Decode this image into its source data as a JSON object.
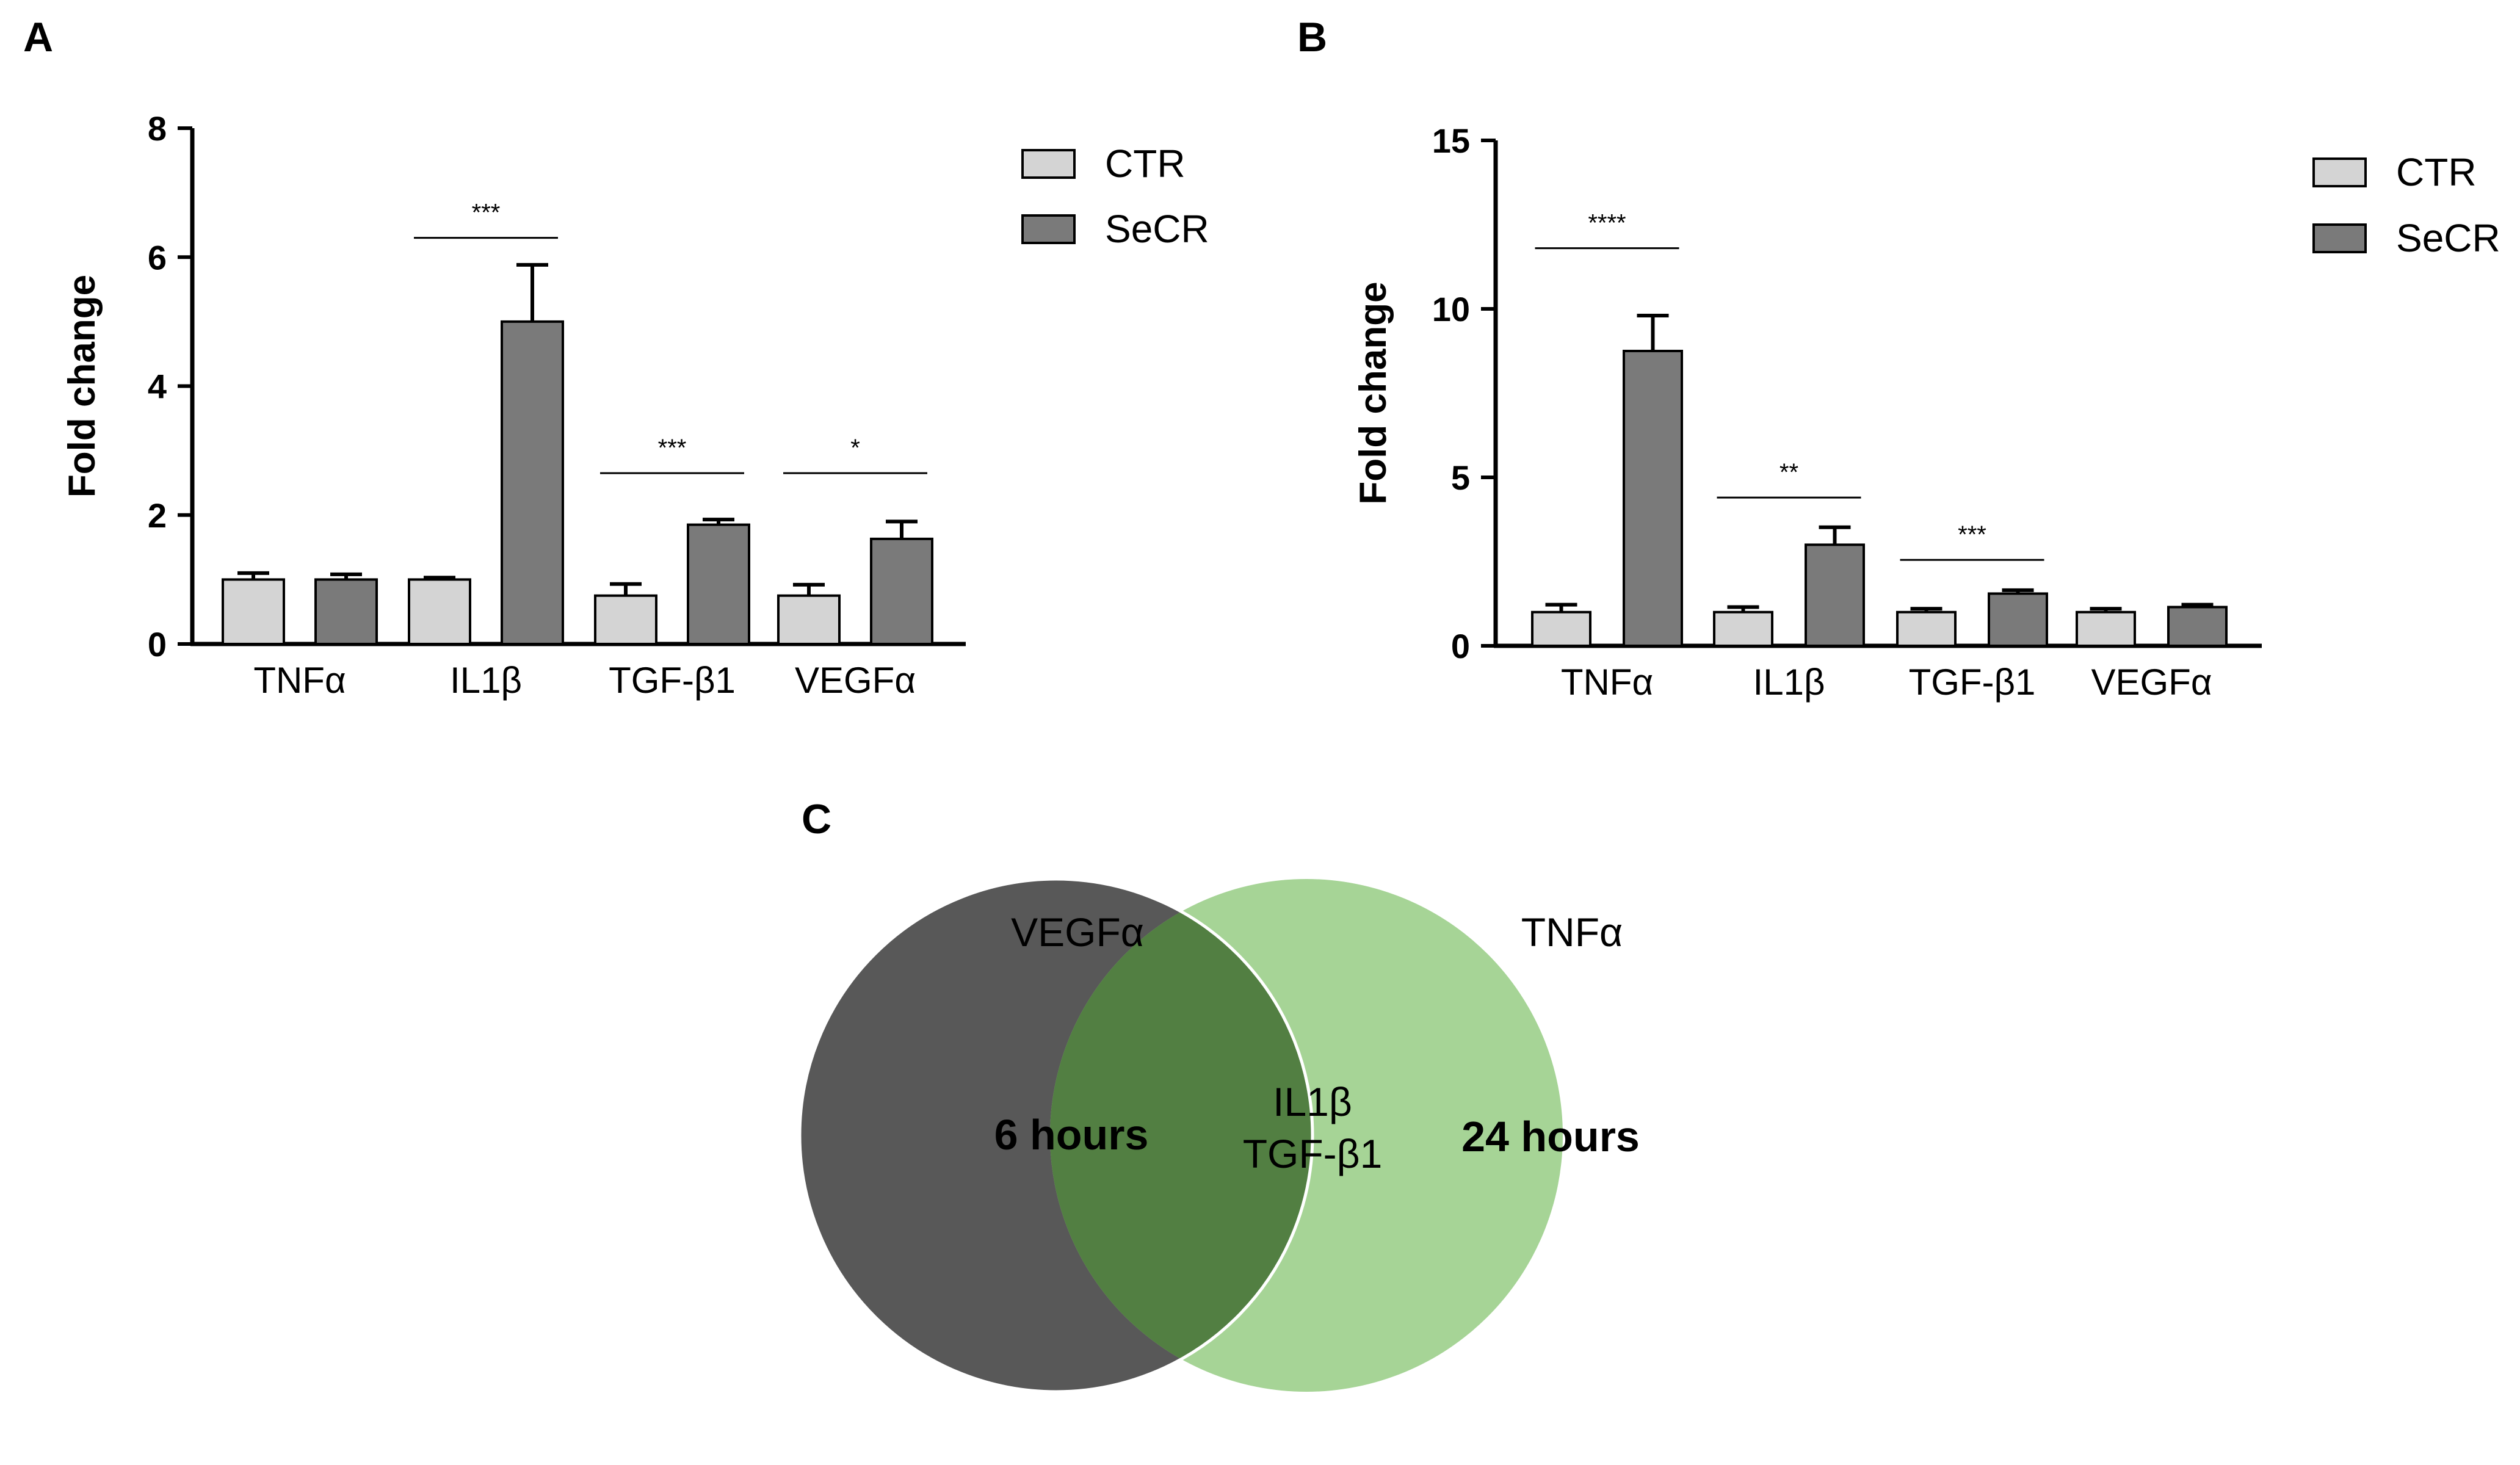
{
  "chart_data": [
    {
      "panel_label": "A",
      "type": "bar",
      "categories": [
        "TNFα",
        "IL1β",
        "TGF-β1",
        "VEGFα"
      ],
      "series": [
        {
          "name": "CTR",
          "values": [
            1.0,
            1.0,
            0.75,
            0.75
          ],
          "errors": [
            0.1,
            0.03,
            0.18,
            0.17
          ],
          "color": "#d4d4d4"
        },
        {
          "name": "SeCR",
          "values": [
            1.0,
            5.0,
            1.85,
            1.63
          ],
          "errors": [
            0.08,
            0.88,
            0.08,
            0.27
          ],
          "color": "#7a7a7a"
        }
      ],
      "significance": [
        {
          "category": "IL1β",
          "label": "***",
          "y": 6.3
        },
        {
          "category": "TGF-β1",
          "label": "***",
          "y": 2.65
        },
        {
          "category": "VEGFα",
          "label": "*",
          "y": 2.65
        }
      ],
      "title": "",
      "xlabel": "",
      "ylabel": "Fold change",
      "ylim": [
        0,
        8
      ],
      "yticks": [
        "0",
        "2",
        "4",
        "6",
        "8"
      ],
      "legend": "top-right"
    },
    {
      "panel_label": "B",
      "type": "bar",
      "categories": [
        "TNFα",
        "IL1β",
        "TGF-β1",
        "VEGFα"
      ],
      "series": [
        {
          "name": "CTR",
          "values": [
            1.0,
            1.0,
            1.0,
            1.0
          ],
          "errors": [
            0.22,
            0.15,
            0.1,
            0.1
          ],
          "color": "#d4d4d4"
        },
        {
          "name": "SeCR",
          "values": [
            8.75,
            3.0,
            1.55,
            1.15
          ],
          "errors": [
            1.05,
            0.52,
            0.1,
            0.07
          ],
          "color": "#7a7a7a"
        }
      ],
      "significance": [
        {
          "category": "TNFα",
          "label": "****",
          "y": 11.8
        },
        {
          "category": "IL1β",
          "label": "**",
          "y": 4.4
        },
        {
          "category": "TGF-β1",
          "label": "***",
          "y": 2.55
        }
      ],
      "title": "",
      "xlabel": "",
      "ylabel": "Fold change",
      "ylim": [
        0,
        15
      ],
      "yticks": [
        "0",
        "5",
        "10",
        "15"
      ],
      "legend": "top-right"
    }
  ],
  "venn": {
    "panel_label": "C",
    "left": {
      "name": "6 hours",
      "only": "VEGFα",
      "color": "#585858"
    },
    "right": {
      "name": "24 hours",
      "only": "TNFα",
      "color": "#a6d496"
    },
    "overlap": {
      "items": [
        "IL1β",
        "TGF-β1"
      ],
      "color": "#527f42"
    }
  }
}
